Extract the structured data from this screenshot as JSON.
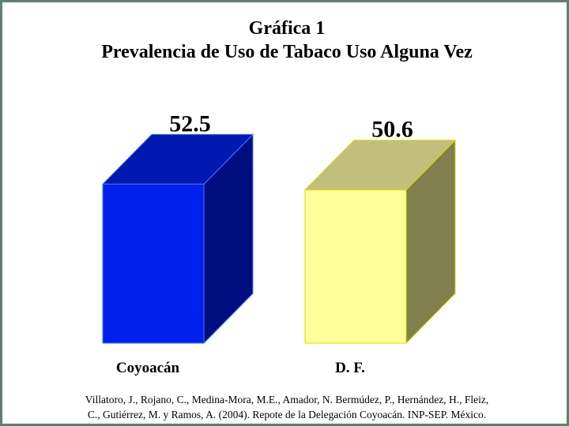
{
  "title_line1": "Gráfica 1",
  "title_line2": "Prevalencia de Uso de Tabaco Uso Alguna Vez",
  "source_line1": "Villatoro, J., Rojano, C., Medina-Mora, M.E., Amador, N. Bermúdez, P., Hernández, H., Fleiz,",
  "source_line2": "C., Gutiérrez, M. y Ramos, A. (2004). Repote de la Delegación Coyoacán. INP-SEP. México.",
  "chart_data": {
    "type": "bar",
    "style": "3d-box",
    "title": "Gráfica 1 — Prevalencia de Uso de Tabaco Uso Alguna Vez",
    "categories": [
      "Coyoacán",
      "D. F."
    ],
    "values": [
      52.5,
      50.6
    ],
    "value_labels": [
      "52.5",
      "50.6"
    ],
    "colors": [
      {
        "front": "#0020ee",
        "top": "#0018b0",
        "side": "#000e80",
        "edge": "#3a7bff"
      },
      {
        "front": "#ffff99",
        "top": "#c0c07c",
        "side": "#80804e",
        "edge": "#d8d800"
      }
    ],
    "grid": false,
    "legend": "none"
  }
}
